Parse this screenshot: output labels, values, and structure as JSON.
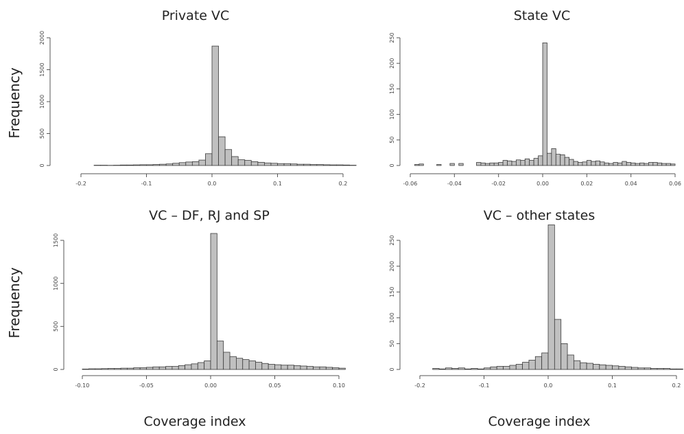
{
  "ylabel": "Frequency",
  "chart_data": [
    {
      "type": "bar",
      "title": "Private VC",
      "xlabel": "",
      "ylabel": "Frequency",
      "xlim": [
        -0.2,
        0.2
      ],
      "ylim": [
        0,
        2000
      ],
      "xticks": [
        -0.2,
        -0.1,
        0.0,
        0.1,
        0.2
      ],
      "xtick_labels": [
        "-0.2",
        "-0.1",
        "0.0",
        "0.1",
        "0.2"
      ],
      "yticks": [
        0,
        500,
        1000,
        1500,
        2000
      ],
      "ytick_labels": [
        "0",
        "500",
        "1000",
        "1500",
        "2000"
      ],
      "bin_width": 0.01,
      "x": [
        -0.175,
        -0.165,
        -0.155,
        -0.145,
        -0.135,
        -0.125,
        -0.115,
        -0.105,
        -0.095,
        -0.085,
        -0.075,
        -0.065,
        -0.055,
        -0.045,
        -0.035,
        -0.025,
        -0.015,
        -0.005,
        0.005,
        0.015,
        0.025,
        0.035,
        0.045,
        0.055,
        0.065,
        0.075,
        0.085,
        0.095,
        0.105,
        0.115,
        0.125,
        0.135,
        0.145,
        0.155,
        0.165,
        0.175,
        0.185,
        0.195,
        0.205,
        0.215
      ],
      "values": [
        5,
        5,
        3,
        5,
        8,
        8,
        10,
        12,
        12,
        15,
        20,
        25,
        35,
        45,
        55,
        60,
        85,
        185,
        1870,
        450,
        250,
        140,
        90,
        80,
        60,
        50,
        40,
        35,
        30,
        30,
        25,
        20,
        20,
        15,
        15,
        12,
        10,
        10,
        8,
        5
      ]
    },
    {
      "type": "bar",
      "title": "State VC",
      "xlabel": "",
      "ylabel": "",
      "xlim": [
        -0.06,
        0.06
      ],
      "ylim": [
        0,
        250
      ],
      "xticks": [
        -0.06,
        -0.04,
        -0.02,
        0.0,
        0.02,
        0.04,
        0.06
      ],
      "xtick_labels": [
        "-0.06",
        "-0.04",
        "-0.02",
        "0.00",
        "0.02",
        "0.04",
        "0.06"
      ],
      "yticks": [
        0,
        50,
        100,
        150,
        200,
        250
      ],
      "ytick_labels": [
        "0",
        "50",
        "100",
        "150",
        "200",
        "250"
      ],
      "bin_width": 0.002,
      "x": [
        -0.059,
        -0.057,
        -0.055,
        -0.053,
        -0.051,
        -0.049,
        -0.047,
        -0.045,
        -0.043,
        -0.041,
        -0.039,
        -0.037,
        -0.035,
        -0.033,
        -0.031,
        -0.029,
        -0.027,
        -0.025,
        -0.023,
        -0.021,
        -0.019,
        -0.017,
        -0.015,
        -0.013,
        -0.011,
        -0.009,
        -0.007,
        -0.005,
        -0.003,
        -0.001,
        0.001,
        0.003,
        0.005,
        0.007,
        0.009,
        0.011,
        0.013,
        0.015,
        0.017,
        0.019,
        0.021,
        0.023,
        0.025,
        0.027,
        0.029,
        0.031,
        0.033,
        0.035,
        0.037,
        0.039,
        0.041,
        0.043,
        0.045,
        0.047,
        0.049,
        0.051,
        0.053,
        0.055,
        0.057,
        0.059
      ],
      "values": [
        0,
        2,
        3,
        0,
        0,
        0,
        2,
        0,
        0,
        4,
        0,
        4,
        0,
        0,
        0,
        6,
        5,
        4,
        5,
        5,
        6,
        10,
        9,
        8,
        11,
        10,
        13,
        10,
        14,
        19,
        240,
        24,
        33,
        22,
        21,
        16,
        12,
        8,
        6,
        7,
        10,
        8,
        9,
        7,
        5,
        4,
        6,
        5,
        8,
        6,
        5,
        4,
        5,
        4,
        6,
        6,
        5,
        4,
        4,
        3
      ]
    },
    {
      "type": "bar",
      "title": "VC – DF, RJ and SP",
      "xlabel": "Coverage index",
      "ylabel": "Frequency",
      "xlim": [
        -0.1,
        0.1
      ],
      "ylim": [
        0,
        1500
      ],
      "xticks": [
        -0.1,
        -0.05,
        0.0,
        0.05,
        0.1
      ],
      "xtick_labels": [
        "-0.10",
        "-0.05",
        "0.00",
        "0.05",
        "0.10"
      ],
      "yticks": [
        0,
        500,
        1000,
        1500
      ],
      "ytick_labels": [
        "0",
        "500",
        "1000",
        "1500"
      ],
      "bin_width": 0.005,
      "x": [
        -0.0975,
        -0.0925,
        -0.0875,
        -0.0825,
        -0.0775,
        -0.0725,
        -0.0675,
        -0.0625,
        -0.0575,
        -0.0525,
        -0.0475,
        -0.0425,
        -0.0375,
        -0.0325,
        -0.0275,
        -0.0225,
        -0.0175,
        -0.0125,
        -0.0075,
        -0.0025,
        0.0025,
        0.0075,
        0.0125,
        0.0175,
        0.0225,
        0.0275,
        0.0325,
        0.0375,
        0.0425,
        0.0475,
        0.0525,
        0.0575,
        0.0625,
        0.0675,
        0.0725,
        0.0775,
        0.0825,
        0.0875,
        0.0925,
        0.0975,
        0.1025
      ],
      "values": [
        5,
        8,
        8,
        10,
        12,
        12,
        15,
        15,
        20,
        20,
        25,
        30,
        30,
        35,
        35,
        45,
        55,
        65,
        80,
        100,
        1580,
        330,
        200,
        150,
        130,
        115,
        100,
        85,
        70,
        60,
        55,
        50,
        50,
        45,
        40,
        35,
        30,
        30,
        25,
        20,
        15
      ]
    },
    {
      "type": "bar",
      "title": "VC – other states",
      "xlabel": "Coverage index",
      "ylabel": "",
      "xlim": [
        -0.2,
        0.2
      ],
      "ylim": [
        0,
        250
      ],
      "xticks": [
        -0.2,
        -0.1,
        0.0,
        0.1,
        0.2
      ],
      "xtick_labels": [
        "-0.2",
        "-0.1",
        "0.0",
        "0.1",
        "0.2"
      ],
      "yticks": [
        0,
        50,
        100,
        150,
        200,
        250
      ],
      "ytick_labels": [
        "0",
        "50",
        "100",
        "150",
        "200",
        "250"
      ],
      "bin_width": 0.01,
      "x": [
        -0.195,
        -0.185,
        -0.175,
        -0.165,
        -0.155,
        -0.145,
        -0.135,
        -0.125,
        -0.115,
        -0.105,
        -0.095,
        -0.085,
        -0.075,
        -0.065,
        -0.055,
        -0.045,
        -0.035,
        -0.025,
        -0.015,
        -0.005,
        0.005,
        0.015,
        0.025,
        0.035,
        0.045,
        0.055,
        0.065,
        0.075,
        0.085,
        0.095,
        0.105,
        0.115,
        0.125,
        0.135,
        0.145,
        0.155,
        0.165,
        0.175,
        0.185,
        0.195,
        0.205
      ],
      "values": [
        0,
        0,
        2,
        1,
        3,
        2,
        3,
        1,
        2,
        1,
        3,
        5,
        6,
        6,
        8,
        10,
        14,
        18,
        25,
        32,
        280,
        97,
        50,
        28,
        17,
        13,
        12,
        10,
        9,
        8,
        7,
        6,
        5,
        4,
        3,
        3,
        2,
        2,
        2,
        1,
        1
      ]
    }
  ]
}
